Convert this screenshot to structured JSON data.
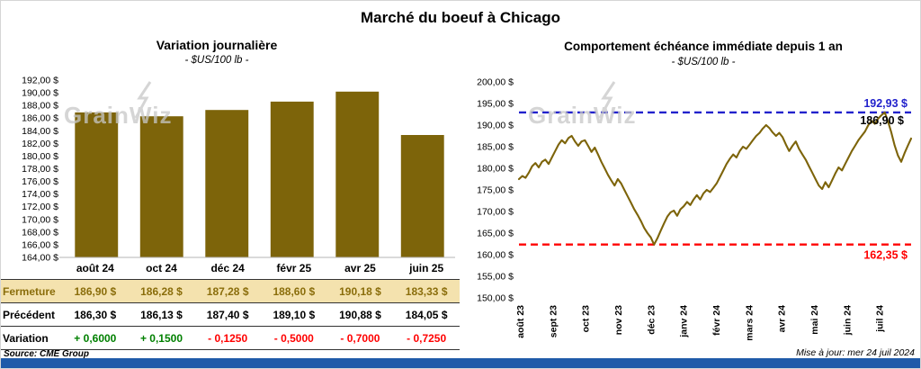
{
  "page_title": "Marché du boeuf à Chicago",
  "watermark": "GrainWiz",
  "left_chart": {
    "title": "Variation journalière",
    "subtitle": "- $US/100 lb -"
  },
  "right_chart": {
    "title": "Comportement échéance immédiate depuis 1 an",
    "subtitle": "- $US/100 lb -",
    "max_label": "192,93 $",
    "last_label": "186,90 $",
    "min_label": "162,35 $"
  },
  "table": {
    "rows": [
      {
        "label": "Fermeture",
        "values": [
          "186,90 $",
          "186,28 $",
          "187,28 $",
          "188,60 $",
          "190,18 $",
          "183,33 $"
        ]
      },
      {
        "label": "Précédent",
        "values": [
          "186,30 $",
          "186,13 $",
          "187,40 $",
          "189,10 $",
          "190,88 $",
          "184,05 $"
        ]
      },
      {
        "label": "Variation",
        "values": [
          "+ 0,6000",
          "+ 0,1500",
          "- 0,1250",
          "- 0,5000",
          "- 0,7000",
          "- 0,7250"
        ]
      }
    ]
  },
  "footer": {
    "source": "Source: CME Group",
    "updated": "Mise à jour: mer 24 juil 2024"
  },
  "chart_data": [
    {
      "type": "bar",
      "title": "Variation journalière",
      "subtitle": "- $US/100 lb -",
      "categories": [
        "août 24",
        "oct 24",
        "déc 24",
        "févr 25",
        "avr 25",
        "juin 25"
      ],
      "values": [
        186.9,
        186.28,
        187.28,
        188.6,
        190.18,
        183.33
      ],
      "ylim": [
        164,
        192
      ],
      "ytick_step": 2,
      "bar_color": "#7d640a",
      "grid": false,
      "value_format": "fr-currency"
    },
    {
      "type": "line",
      "title": "Comportement échéance immédiate depuis 1 an",
      "subtitle": "- $US/100 lb -",
      "x_labels": [
        "août 23",
        "sept 23",
        "oct 23",
        "nov 23",
        "déc 23",
        "janv 24",
        "févr 24",
        "mars 24",
        "avr 24",
        "mai 24",
        "juin 24",
        "juil 24"
      ],
      "values": [
        177.5,
        178.2,
        177.8,
        179.0,
        180.5,
        181.2,
        180.2,
        181.5,
        182.0,
        181.0,
        182.5,
        184.0,
        185.5,
        186.5,
        185.8,
        187.0,
        187.5,
        186.2,
        185.2,
        186.2,
        186.5,
        185.2,
        183.8,
        184.8,
        183.2,
        181.5,
        180.0,
        178.5,
        177.2,
        176.0,
        177.5,
        176.5,
        175.0,
        173.5,
        172.0,
        170.5,
        169.2,
        167.8,
        166.2,
        165.0,
        164.0,
        162.35,
        163.8,
        165.5,
        167.2,
        168.8,
        169.8,
        170.2,
        169.0,
        170.5,
        171.2,
        172.2,
        171.5,
        172.8,
        173.8,
        172.8,
        174.2,
        175.0,
        174.5,
        175.5,
        176.5,
        178.0,
        179.5,
        181.0,
        182.2,
        183.2,
        182.5,
        184.0,
        185.0,
        184.5,
        185.5,
        186.5,
        187.5,
        188.2,
        189.2,
        190.0,
        189.3,
        188.3,
        187.5,
        188.2,
        187.2,
        185.5,
        184.0,
        185.2,
        186.2,
        184.5,
        183.2,
        182.0,
        180.5,
        179.0,
        177.5,
        176.0,
        175.2,
        176.8,
        175.6,
        177.2,
        178.8,
        180.2,
        179.5,
        181.0,
        182.5,
        184.0,
        185.2,
        186.5,
        187.5,
        188.5,
        190.0,
        191.0,
        190.3,
        191.5,
        192.3,
        192.93,
        190.8,
        188.3,
        185.3,
        183.0,
        181.5,
        183.5,
        185.2,
        186.9
      ],
      "ylim": [
        150,
        200
      ],
      "ytick_step": 5,
      "line_color": "#7d640a",
      "grid": false,
      "hlines": [
        {
          "value": 192.93,
          "color": "#2222cc",
          "label": "192,93 $"
        },
        {
          "value": 162.35,
          "color": "#ff0000",
          "label": "162,35 $"
        }
      ],
      "last_value": 186.9,
      "last_value_label": "186,90 $"
    }
  ]
}
